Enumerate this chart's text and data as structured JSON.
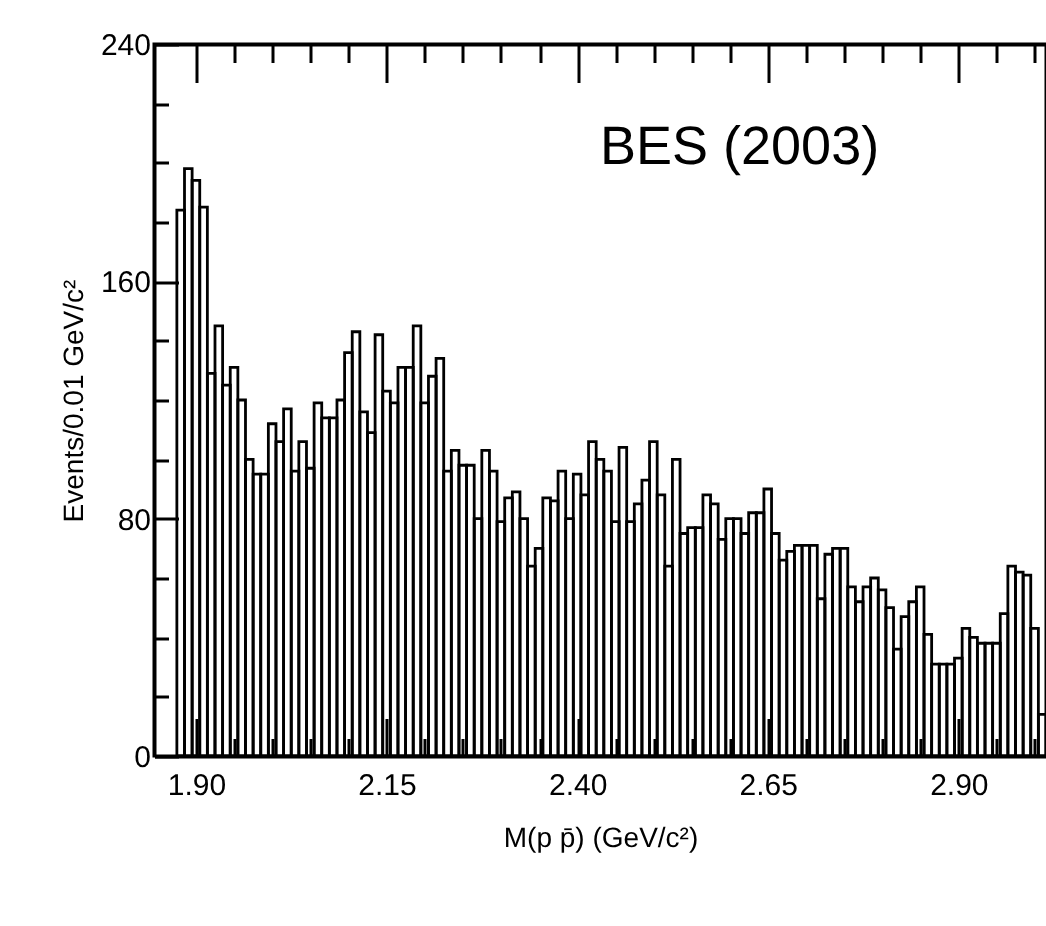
{
  "chart_data": {
    "type": "histogram",
    "xlabel": "M(p p̄) (GeV/c²)",
    "ylabel": "Events/0.01 GeV/c²",
    "annotations": [
      "BES (2003)"
    ],
    "color": "#000000",
    "bins": [
      1.875,
      1.885,
      1.895,
      1.905,
      1.915,
      1.925,
      1.935,
      1.945,
      1.955,
      1.965,
      1.975,
      1.985,
      1.995,
      2.005,
      2.015,
      2.025,
      2.035,
      2.045,
      2.055,
      2.065,
      2.075,
      2.085,
      2.095,
      2.105,
      2.115,
      2.125,
      2.135,
      2.145,
      2.155,
      2.165,
      2.175,
      2.185,
      2.195,
      2.205,
      2.215,
      2.225,
      2.235,
      2.245,
      2.255,
      2.265,
      2.275,
      2.285,
      2.295,
      2.305,
      2.315,
      2.325,
      2.335,
      2.345,
      2.355,
      2.365,
      2.375,
      2.385,
      2.395,
      2.405,
      2.415,
      2.425,
      2.435,
      2.445,
      2.455,
      2.465,
      2.475,
      2.485,
      2.495,
      2.505,
      2.515,
      2.525,
      2.535,
      2.545,
      2.555,
      2.565,
      2.575,
      2.585,
      2.595,
      2.605,
      2.615,
      2.625,
      2.635,
      2.645,
      2.655,
      2.665,
      2.675,
      2.685,
      2.695,
      2.705,
      2.715,
      2.725,
      2.735,
      2.745,
      2.755,
      2.765,
      2.775,
      2.785,
      2.795,
      2.805,
      2.815,
      2.825,
      2.835,
      2.845,
      2.855,
      2.865,
      2.875,
      2.885,
      2.895,
      2.905,
      2.915,
      2.925,
      2.935,
      2.945,
      2.955,
      2.965,
      2.975,
      2.985,
      2.995,
      3.005,
      3.015
    ],
    "values": [
      184,
      198,
      194,
      185,
      129,
      145,
      125,
      131,
      120,
      100,
      95,
      95,
      112,
      106,
      117,
      96,
      106,
      97,
      119,
      114,
      114,
      120,
      136,
      143,
      116,
      109,
      142,
      123,
      119,
      131,
      131,
      145,
      119,
      128,
      134,
      96,
      103,
      98,
      98,
      80,
      103,
      96,
      79,
      87,
      89,
      80,
      64,
      70,
      87,
      86,
      96,
      80,
      95,
      88,
      106,
      100,
      96,
      79,
      104,
      79,
      85,
      93,
      106,
      88,
      64,
      100,
      75,
      77,
      77,
      88,
      85,
      73,
      80,
      80,
      75,
      82,
      82,
      90,
      75,
      66,
      69,
      71,
      71,
      71,
      53,
      68,
      70,
      70,
      57,
      52,
      57,
      60,
      56,
      50,
      36,
      47,
      52,
      57,
      41,
      31,
      31,
      31,
      33,
      43,
      40,
      38,
      38,
      38,
      48,
      64,
      62,
      61,
      43,
      14
    ],
    "xlim": [
      1.845,
      3.015
    ],
    "xticks": [
      {
        "value": 1.9,
        "label": "1.90"
      },
      {
        "value": 1.95,
        "label": null
      },
      {
        "value": 2.0,
        "label": null
      },
      {
        "value": 2.05,
        "label": null
      },
      {
        "value": 2.1,
        "label": null
      },
      2.15,
      {
        "value": 2.2,
        "label": null
      },
      {
        "value": 2.25,
        "label": null
      },
      {
        "value": 2.3,
        "label": null
      },
      {
        "value": 2.35,
        "label": null
      },
      {
        "value": 2.4,
        "label": "2.40"
      },
      {
        "value": 2.45,
        "label": null
      },
      {
        "value": 2.5,
        "label": null
      },
      {
        "value": 2.55,
        "label": null
      },
      {
        "value": 2.6,
        "label": null
      },
      2.65,
      {
        "value": 2.7,
        "label": null
      },
      {
        "value": 2.75,
        "label": null
      },
      {
        "value": 2.8,
        "label": null
      },
      {
        "value": 2.85,
        "label": null
      },
      {
        "value": 2.9,
        "label": "2.90"
      },
      {
        "value": 2.95,
        "label": null
      },
      {
        "value": 3.0,
        "label": null
      }
    ],
    "ylim": [
      0,
      240
    ],
    "yticks": [
      0,
      {
        "value": 20,
        "label": null
      },
      {
        "value": 40,
        "label": null
      },
      {
        "value": 60,
        "label": null
      },
      80,
      {
        "value": 100,
        "label": null
      },
      {
        "value": 120,
        "label": null
      },
      {
        "value": 140,
        "label": null
      },
      160,
      {
        "value": 180,
        "label": null
      },
      {
        "value": 200,
        "label": null
      },
      {
        "value": 220,
        "label": null
      },
      240
    ],
    "grid": false
  }
}
